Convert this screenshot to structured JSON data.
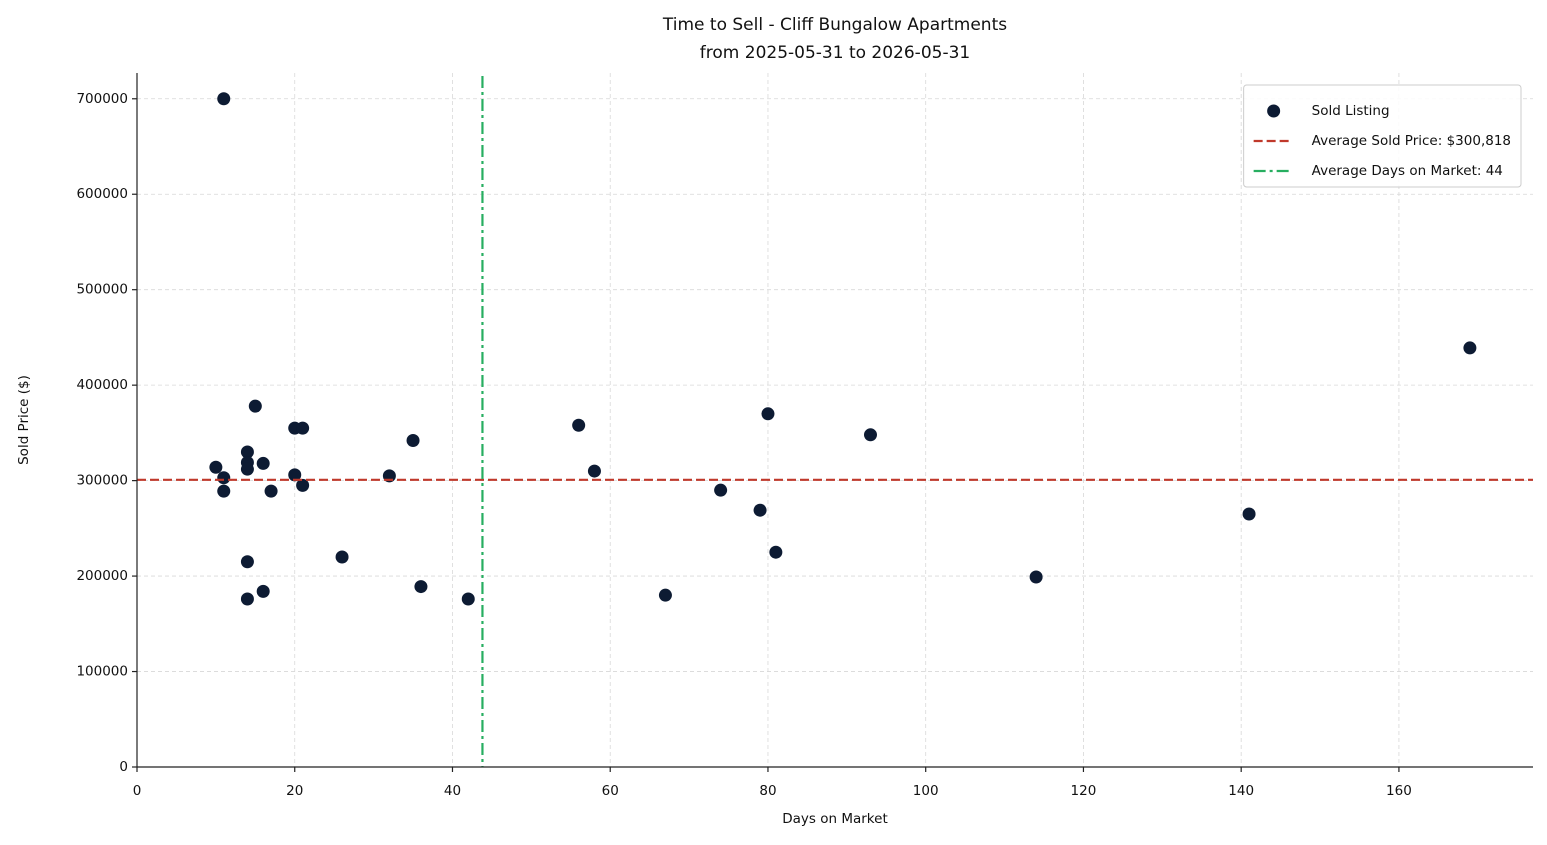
{
  "chart_data": {
    "type": "scatter",
    "title": "Time to Sell - Cliff Bungalow Apartments",
    "subtitle": "from 2025-05-31 to 2026-05-31",
    "x_label": "Days on Market",
    "y_label": "Sold Price ($)",
    "xlim": [
      0,
      177
    ],
    "ylim": [
      0,
      727000
    ],
    "xticks": [
      0,
      20,
      40,
      60,
      80,
      100,
      120,
      140,
      160
    ],
    "yticks": [
      0,
      100000,
      200000,
      300000,
      400000,
      500000,
      600000,
      700000
    ],
    "grid": true,
    "legend": "upper right",
    "series": [
      {
        "name": "Sold Listing",
        "color": "#0d1b33",
        "x": [
          11,
          10,
          11,
          11,
          14,
          14,
          14,
          15,
          16,
          17,
          20,
          21,
          20,
          21,
          14,
          14,
          16,
          26,
          32,
          35,
          36,
          42,
          56,
          58,
          67,
          74,
          79,
          80,
          81,
          93,
          114,
          141,
          169
        ],
        "values": [
          700000,
          314000,
          303000,
          289000,
          330000,
          319000,
          312000,
          378000,
          318000,
          289000,
          355000,
          355000,
          306000,
          295000,
          215000,
          176000,
          184000,
          220000,
          305000,
          342000,
          189000,
          176000,
          358000,
          310000,
          180000,
          290000,
          269000,
          370000,
          225000,
          348000,
          199000,
          265000,
          439000
        ]
      }
    ],
    "reference_lines": [
      {
        "name": "Average Sold Price: $300,818",
        "axis": "y",
        "value": 300818,
        "color": "#c0392b",
        "style": "dashed"
      },
      {
        "name": "Average Days on Market: 44",
        "axis": "x",
        "value": 43.8,
        "color": "#27ae60",
        "style": "dashdot"
      }
    ]
  }
}
